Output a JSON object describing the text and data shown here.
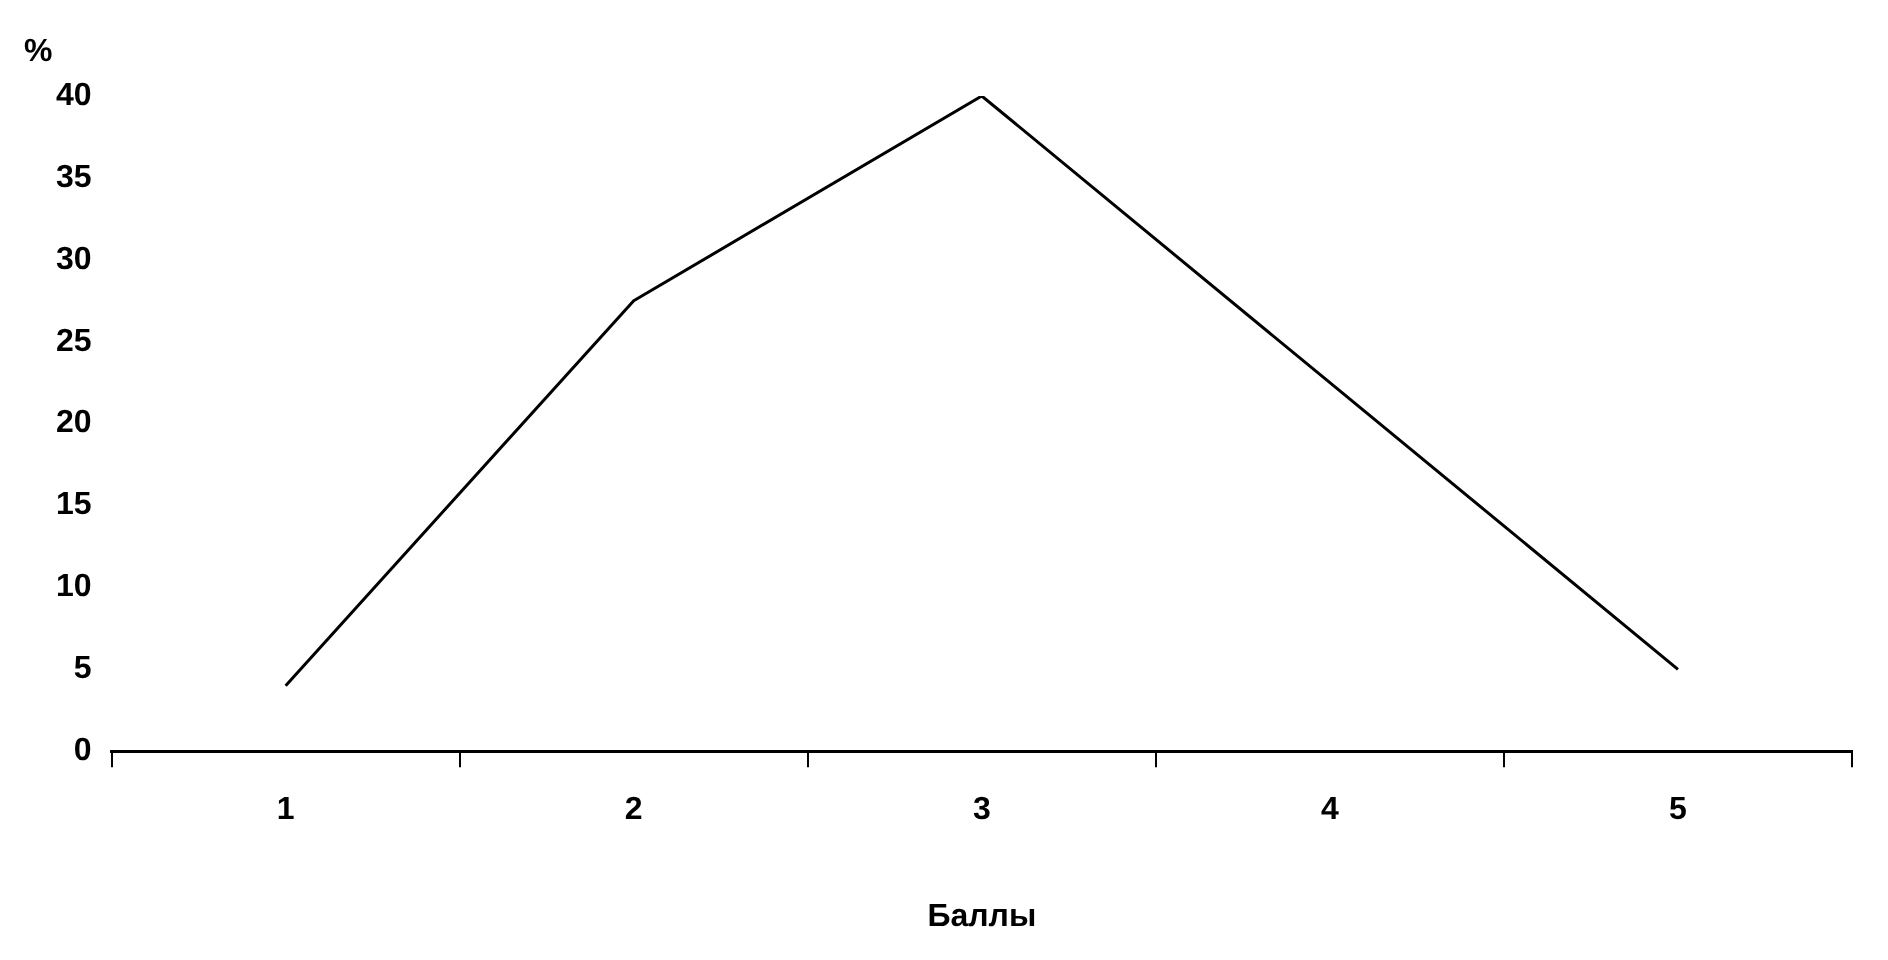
{
  "chart_data": {
    "type": "line",
    "xlabel": "Баллы",
    "ylabel": "%",
    "categories": [
      "1",
      "2",
      "3",
      "4",
      "5"
    ],
    "series": [
      {
        "color": "#000000",
        "values": [
          4,
          27.5,
          40,
          22.5,
          5
        ]
      }
    ],
    "ylim": [
      0,
      40
    ],
    "yticks": [
      0,
      5,
      10,
      15,
      20,
      25,
      30,
      35,
      40
    ],
    "grid": false,
    "legend": false,
    "marker": "none"
  }
}
